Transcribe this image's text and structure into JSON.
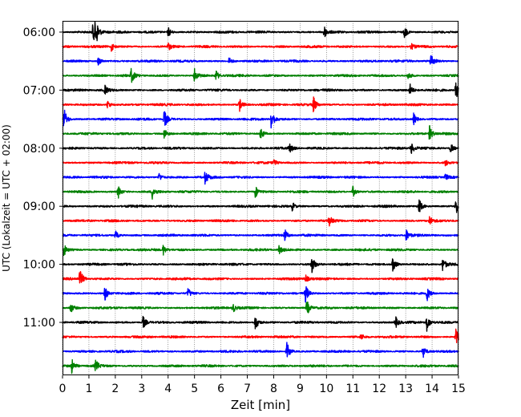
{
  "chart_data": {
    "type": "line",
    "title": "",
    "xlabel": "Zeit  [min]",
    "ylabel": "UTC (Lokalzeit = UTC + 02:00)",
    "xlim": [
      0,
      15
    ],
    "x_ticks": [
      "0",
      "1",
      "2",
      "3",
      "4",
      "5",
      "6",
      "7",
      "8",
      "9",
      "10",
      "11",
      "12",
      "13",
      "14",
      "15"
    ],
    "y_tick_labels": [
      "06:00",
      "07:00",
      "08:00",
      "09:00",
      "10:00",
      "11:00"
    ],
    "grid": "vertical-dotted",
    "trace_interval_minutes": 15,
    "trace_colors": [
      "#000000",
      "#ff0000",
      "#0000ff",
      "#008000"
    ],
    "traces": [
      {
        "start": "06:00",
        "color": "#000000",
        "events": [
          [
            1.25,
            1.0
          ],
          [
            1.15,
            0.7
          ],
          [
            4.0,
            0.35
          ],
          [
            9.9,
            0.45
          ],
          [
            12.95,
            0.4
          ]
        ]
      },
      {
        "start": "06:15",
        "color": "#ff0000",
        "events": [
          [
            1.85,
            0.3
          ],
          [
            4.0,
            0.25
          ],
          [
            13.2,
            0.2
          ]
        ]
      },
      {
        "start": "06:30",
        "color": "#0000ff",
        "events": [
          [
            1.35,
            0.3
          ],
          [
            6.3,
            0.25
          ],
          [
            13.95,
            0.55
          ]
        ]
      },
      {
        "start": "06:45",
        "color": "#008000",
        "events": [
          [
            2.6,
            0.5
          ],
          [
            5.0,
            0.55
          ],
          [
            5.8,
            0.4
          ],
          [
            13.1,
            0.3
          ]
        ]
      },
      {
        "start": "07:00",
        "color": "#000000",
        "events": [
          [
            1.6,
            0.3
          ],
          [
            13.15,
            0.45
          ],
          [
            14.9,
            0.65
          ]
        ]
      },
      {
        "start": "07:15",
        "color": "#ff0000",
        "events": [
          [
            1.7,
            0.3
          ],
          [
            6.7,
            0.45
          ],
          [
            9.5,
            0.55
          ]
        ]
      },
      {
        "start": "07:30",
        "color": "#0000ff",
        "events": [
          [
            0.05,
            0.8
          ],
          [
            3.85,
            0.7
          ],
          [
            7.9,
            0.75
          ],
          [
            13.3,
            0.4
          ]
        ]
      },
      {
        "start": "07:45",
        "color": "#008000",
        "events": [
          [
            3.85,
            0.35
          ],
          [
            7.5,
            0.45
          ],
          [
            13.9,
            0.55
          ]
        ]
      },
      {
        "start": "08:00",
        "color": "#000000",
        "events": [
          [
            8.6,
            0.3
          ],
          [
            13.2,
            0.45
          ],
          [
            14.7,
            0.35
          ]
        ]
      },
      {
        "start": "08:15",
        "color": "#ff0000",
        "events": [
          [
            8.0,
            0.2
          ],
          [
            14.5,
            0.2
          ]
        ]
      },
      {
        "start": "08:30",
        "color": "#0000ff",
        "events": [
          [
            3.65,
            0.3
          ],
          [
            5.4,
            0.45
          ],
          [
            14.5,
            0.25
          ]
        ]
      },
      {
        "start": "08:45",
        "color": "#008000",
        "events": [
          [
            2.1,
            0.5
          ],
          [
            3.4,
            0.45
          ],
          [
            7.3,
            0.4
          ],
          [
            11.0,
            0.35
          ]
        ]
      },
      {
        "start": "09:00",
        "color": "#000000",
        "events": [
          [
            8.7,
            0.3
          ],
          [
            13.5,
            0.5
          ],
          [
            14.9,
            0.6
          ]
        ]
      },
      {
        "start": "09:15",
        "color": "#ff0000",
        "events": [
          [
            10.1,
            0.3
          ],
          [
            13.9,
            0.3
          ]
        ]
      },
      {
        "start": "09:30",
        "color": "#0000ff",
        "events": [
          [
            2.0,
            0.3
          ],
          [
            8.4,
            0.45
          ],
          [
            13.0,
            0.45
          ]
        ]
      },
      {
        "start": "09:45",
        "color": "#008000",
        "events": [
          [
            0.05,
            0.4
          ],
          [
            3.8,
            0.4
          ],
          [
            8.2,
            0.3
          ]
        ]
      },
      {
        "start": "10:00",
        "color": "#000000",
        "events": [
          [
            9.45,
            0.55
          ],
          [
            12.5,
            0.55
          ],
          [
            14.4,
            0.45
          ]
        ]
      },
      {
        "start": "10:15",
        "color": "#ff0000",
        "events": [
          [
            0.65,
            0.65
          ],
          [
            9.2,
            0.3
          ]
        ]
      },
      {
        "start": "10:30",
        "color": "#0000ff",
        "events": [
          [
            1.6,
            0.5
          ],
          [
            4.75,
            0.35
          ],
          [
            9.2,
            0.6
          ],
          [
            13.8,
            0.55
          ]
        ]
      },
      {
        "start": "10:45",
        "color": "#008000",
        "events": [
          [
            0.3,
            0.35
          ],
          [
            6.45,
            0.35
          ],
          [
            9.25,
            0.55
          ]
        ]
      },
      {
        "start": "11:00",
        "color": "#000000",
        "events": [
          [
            3.05,
            0.45
          ],
          [
            7.3,
            0.55
          ],
          [
            12.6,
            0.45
          ],
          [
            13.8,
            0.55
          ]
        ]
      },
      {
        "start": "11:15",
        "color": "#ff0000",
        "events": [
          [
            11.3,
            0.2
          ],
          [
            14.9,
            0.55
          ]
        ]
      },
      {
        "start": "11:30",
        "color": "#0000ff",
        "events": [
          [
            8.5,
            0.6
          ],
          [
            13.65,
            0.45
          ]
        ]
      },
      {
        "start": "11:45",
        "color": "#008000",
        "events": [
          [
            0.35,
            0.45
          ],
          [
            1.25,
            0.4
          ]
        ]
      }
    ]
  }
}
